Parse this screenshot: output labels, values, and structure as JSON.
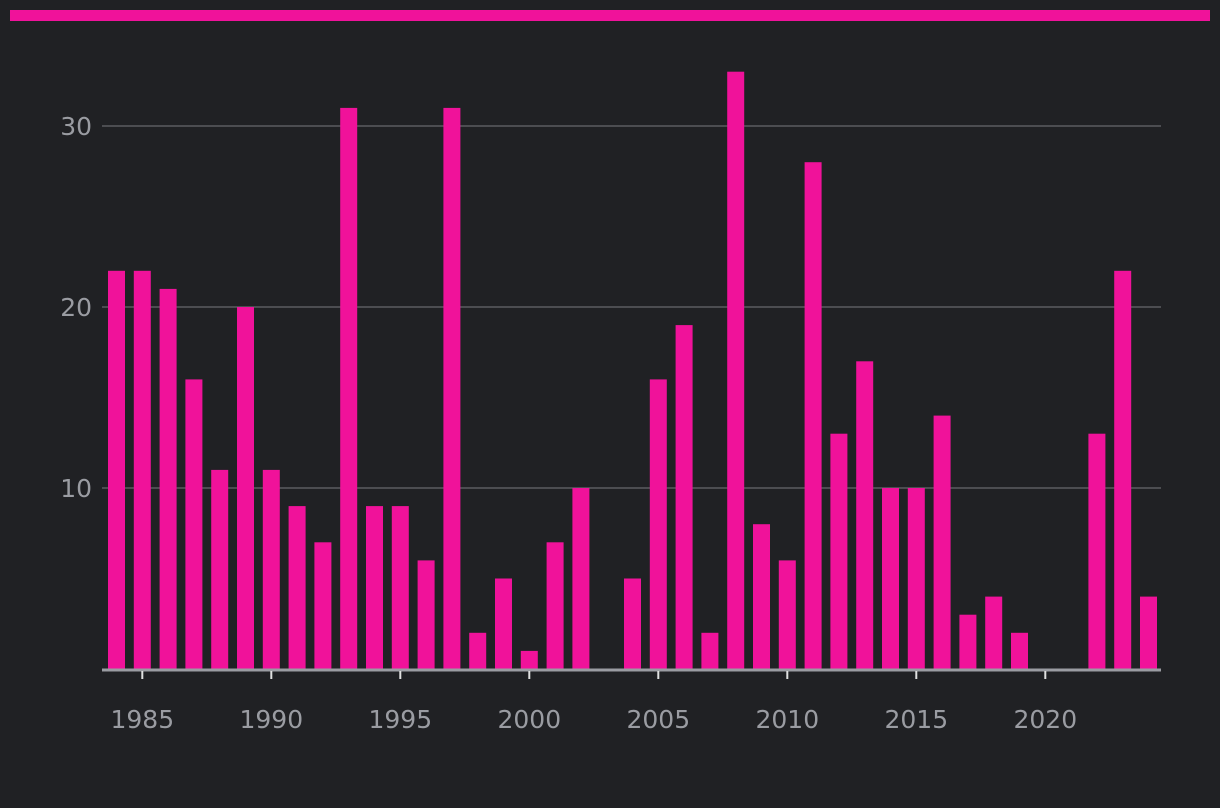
{
  "colors": {
    "background": "#202124",
    "accent": "#f0129a",
    "grid": "#5a5c60",
    "axis": "#9a9ca2",
    "tick_label": "#9a9ca2"
  },
  "chart_data": {
    "type": "bar",
    "title": "",
    "xlabel": "",
    "ylabel": "",
    "categories": [
      1984,
      1985,
      1986,
      1987,
      1988,
      1989,
      1990,
      1991,
      1992,
      1993,
      1994,
      1995,
      1996,
      1997,
      1998,
      1999,
      2000,
      2001,
      2002,
      2003,
      2004,
      2005,
      2006,
      2007,
      2008,
      2009,
      2010,
      2011,
      2012,
      2013,
      2014,
      2015,
      2016,
      2017,
      2018,
      2019,
      2020,
      2021,
      2022,
      2023,
      2024
    ],
    "values": [
      22,
      22,
      21,
      16,
      11,
      20,
      11,
      9,
      7,
      31,
      9,
      9,
      6,
      31,
      2,
      5,
      1,
      7,
      10,
      0,
      5,
      16,
      19,
      2,
      33,
      8,
      6,
      28,
      13,
      17,
      10,
      10,
      14,
      3,
      4,
      2,
      0,
      0,
      13,
      22,
      4
    ],
    "ylim": [
      0,
      34
    ],
    "yticks": [
      10,
      20,
      30
    ],
    "xticks": [
      1985,
      1990,
      1995,
      2000,
      2005,
      2010,
      2015,
      2020
    ],
    "grid": true,
    "legend": "none"
  }
}
